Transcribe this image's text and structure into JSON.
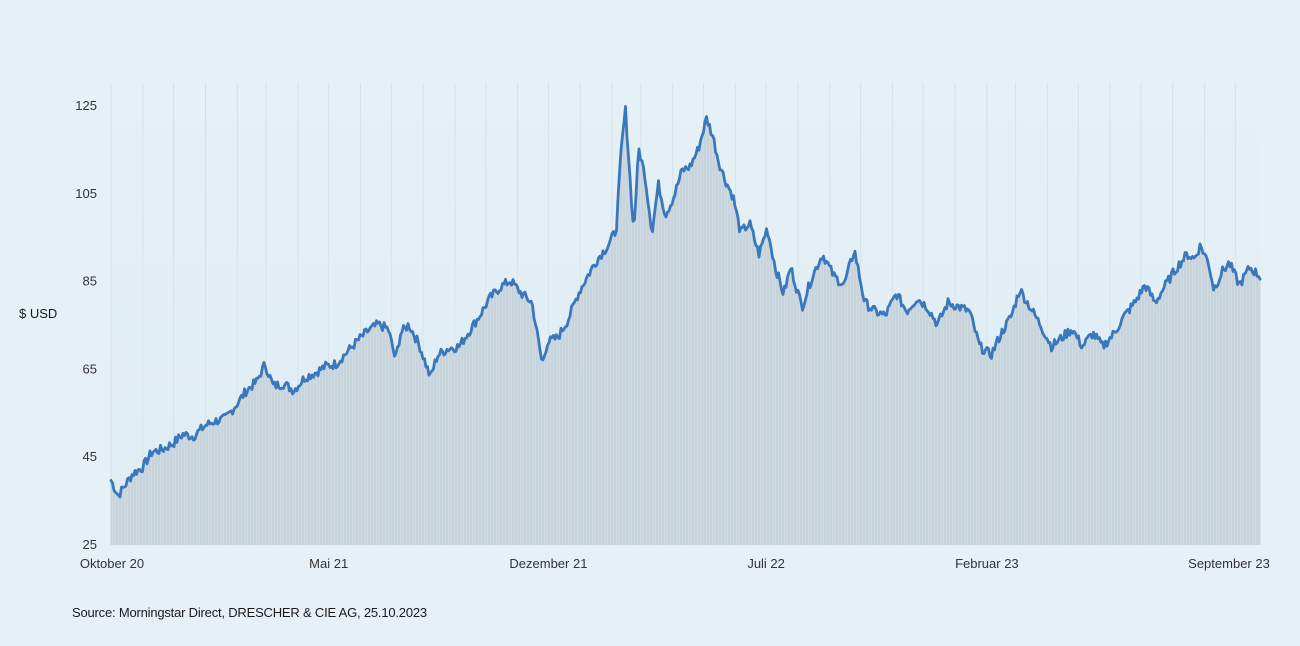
{
  "source_text": "Source: Morningstar Direct, DRESCHER & CIE AG, 25.10.2023",
  "chart_data": {
    "type": "area",
    "title": "",
    "ylabel": "$ USD",
    "xlabel": "",
    "ylim": [
      25,
      130
    ],
    "yticks": [
      25,
      45,
      65,
      85,
      105,
      125
    ],
    "x_start": "2020-10-01",
    "x_end": "2023-10-25",
    "xticks": [
      {
        "date": "2020-10-01",
        "label": "Oktober 20"
      },
      {
        "date": "2021-05-01",
        "label": "Mai 21"
      },
      {
        "date": "2021-12-01",
        "label": "Dezember 21"
      },
      {
        "date": "2022-07-01",
        "label": "Juli 22"
      },
      {
        "date": "2023-02-01",
        "label": "Februar 23"
      },
      {
        "date": "2023-09-01",
        "label": "September 23"
      }
    ],
    "grid": true,
    "colors": {
      "line": "#3a78bd",
      "area": "#cfd9df",
      "grid": "#d5e3ea"
    },
    "series": [
      {
        "name": "",
        "points": [
          [
            "2020-10-01",
            39.5
          ],
          [
            "2020-10-08",
            36.0
          ],
          [
            "2020-10-15",
            38.5
          ],
          [
            "2020-10-22",
            41.0
          ],
          [
            "2020-11-01",
            42.5
          ],
          [
            "2020-11-10",
            46.0
          ],
          [
            "2020-11-20",
            46.5
          ],
          [
            "2020-12-01",
            48.0
          ],
          [
            "2020-12-10",
            50.0
          ],
          [
            "2020-12-20",
            49.5
          ],
          [
            "2021-01-01",
            52.0
          ],
          [
            "2021-01-10",
            53.0
          ],
          [
            "2021-01-20",
            53.5
          ],
          [
            "2021-02-01",
            57.0
          ],
          [
            "2021-02-10",
            60.0
          ],
          [
            "2021-02-20",
            62.0
          ],
          [
            "2021-02-28",
            66.0
          ],
          [
            "2021-03-08",
            61.0
          ],
          [
            "2021-03-18",
            61.5
          ],
          [
            "2021-03-28",
            60.0
          ],
          [
            "2021-04-08",
            63.0
          ],
          [
            "2021-04-18",
            64.0
          ],
          [
            "2021-04-28",
            65.5
          ],
          [
            "2021-05-08",
            66.0
          ],
          [
            "2021-05-18",
            68.5
          ],
          [
            "2021-05-28",
            71.0
          ],
          [
            "2021-06-08",
            73.5
          ],
          [
            "2021-06-18",
            75.0
          ],
          [
            "2021-06-28",
            74.0
          ],
          [
            "2021-07-05",
            67.0
          ],
          [
            "2021-07-10",
            73.0
          ],
          [
            "2021-07-18",
            75.0
          ],
          [
            "2021-07-28",
            70.5
          ],
          [
            "2021-08-08",
            63.0
          ],
          [
            "2021-08-15",
            68.0
          ],
          [
            "2021-08-25",
            69.5
          ],
          [
            "2021-09-05",
            70.0
          ],
          [
            "2021-09-15",
            73.5
          ],
          [
            "2021-09-25",
            77.0
          ],
          [
            "2021-10-05",
            81.0
          ],
          [
            "2021-10-15",
            83.5
          ],
          [
            "2021-10-25",
            85.0
          ],
          [
            "2021-11-05",
            82.0
          ],
          [
            "2021-11-15",
            80.0
          ],
          [
            "2021-11-25",
            66.0
          ],
          [
            "2021-11-30",
            71.0
          ],
          [
            "2021-12-10",
            72.0
          ],
          [
            "2021-12-20",
            76.0
          ],
          [
            "2021-12-30",
            82.0
          ],
          [
            "2022-01-08",
            86.0
          ],
          [
            "2022-01-18",
            90.0
          ],
          [
            "2022-01-28",
            93.0
          ],
          [
            "2022-02-05",
            96.5
          ],
          [
            "2022-02-10",
            115.0
          ],
          [
            "2022-02-14",
            124.0
          ],
          [
            "2022-02-18",
            110.0
          ],
          [
            "2022-02-22",
            96.0
          ],
          [
            "2022-02-27",
            115.0
          ],
          [
            "2022-03-05",
            109.0
          ],
          [
            "2022-03-12",
            96.0
          ],
          [
            "2022-03-18",
            107.0
          ],
          [
            "2022-03-25",
            100.0
          ],
          [
            "2022-04-02",
            104.0
          ],
          [
            "2022-04-10",
            110.0
          ],
          [
            "2022-04-18",
            111.0
          ],
          [
            "2022-04-26",
            115.0
          ],
          [
            "2022-05-04",
            122.0
          ],
          [
            "2022-05-10",
            118.0
          ],
          [
            "2022-05-16",
            112.0
          ],
          [
            "2022-05-22",
            108.0
          ],
          [
            "2022-05-30",
            104.0
          ],
          [
            "2022-06-06",
            96.0
          ],
          [
            "2022-06-15",
            98.0
          ],
          [
            "2022-06-24",
            91.0
          ],
          [
            "2022-07-02",
            97.0
          ],
          [
            "2022-07-10",
            88.0
          ],
          [
            "2022-07-18",
            82.0
          ],
          [
            "2022-07-25",
            88.0
          ],
          [
            "2022-08-05",
            79.0
          ],
          [
            "2022-08-15",
            86.0
          ],
          [
            "2022-08-25",
            91.0
          ],
          [
            "2022-09-05",
            86.0
          ],
          [
            "2022-09-15",
            84.0
          ],
          [
            "2022-09-25",
            92.0
          ],
          [
            "2022-10-05",
            80.0
          ],
          [
            "2022-10-15",
            78.0
          ],
          [
            "2022-10-25",
            77.0
          ],
          [
            "2022-11-05",
            82.0
          ],
          [
            "2022-11-15",
            78.0
          ],
          [
            "2022-11-25",
            81.0
          ],
          [
            "2022-12-05",
            79.0
          ],
          [
            "2022-12-15",
            75.0
          ],
          [
            "2022-12-25",
            80.0
          ],
          [
            "2023-01-05",
            79.0
          ],
          [
            "2023-01-15",
            78.0
          ],
          [
            "2023-01-25",
            70.0
          ],
          [
            "2023-02-05",
            68.0
          ],
          [
            "2023-02-15",
            73.0
          ],
          [
            "2023-02-25",
            77.0
          ],
          [
            "2023-03-05",
            83.0
          ],
          [
            "2023-03-15",
            79.0
          ],
          [
            "2023-03-25",
            75.0
          ],
          [
            "2023-04-05",
            70.0
          ],
          [
            "2023-04-15",
            72.0
          ],
          [
            "2023-04-25",
            74.0
          ],
          [
            "2023-05-05",
            70.0
          ],
          [
            "2023-05-15",
            73.0
          ],
          [
            "2023-05-25",
            70.0
          ],
          [
            "2023-06-05",
            73.0
          ],
          [
            "2023-06-15",
            77.0
          ],
          [
            "2023-06-25",
            80.0
          ],
          [
            "2023-07-05",
            84.0
          ],
          [
            "2023-07-15",
            80.0
          ],
          [
            "2023-07-25",
            84.0
          ],
          [
            "2023-08-05",
            88.0
          ],
          [
            "2023-08-15",
            91.0
          ],
          [
            "2023-08-22",
            90.0
          ],
          [
            "2023-08-28",
            93.0
          ],
          [
            "2023-09-05",
            89.0
          ],
          [
            "2023-09-10",
            83.0
          ],
          [
            "2023-09-18",
            87.0
          ],
          [
            "2023-09-25",
            89.0
          ],
          [
            "2023-10-05",
            84.0
          ],
          [
            "2023-10-15",
            88.0
          ],
          [
            "2023-10-25",
            86.0
          ]
        ]
      }
    ]
  }
}
